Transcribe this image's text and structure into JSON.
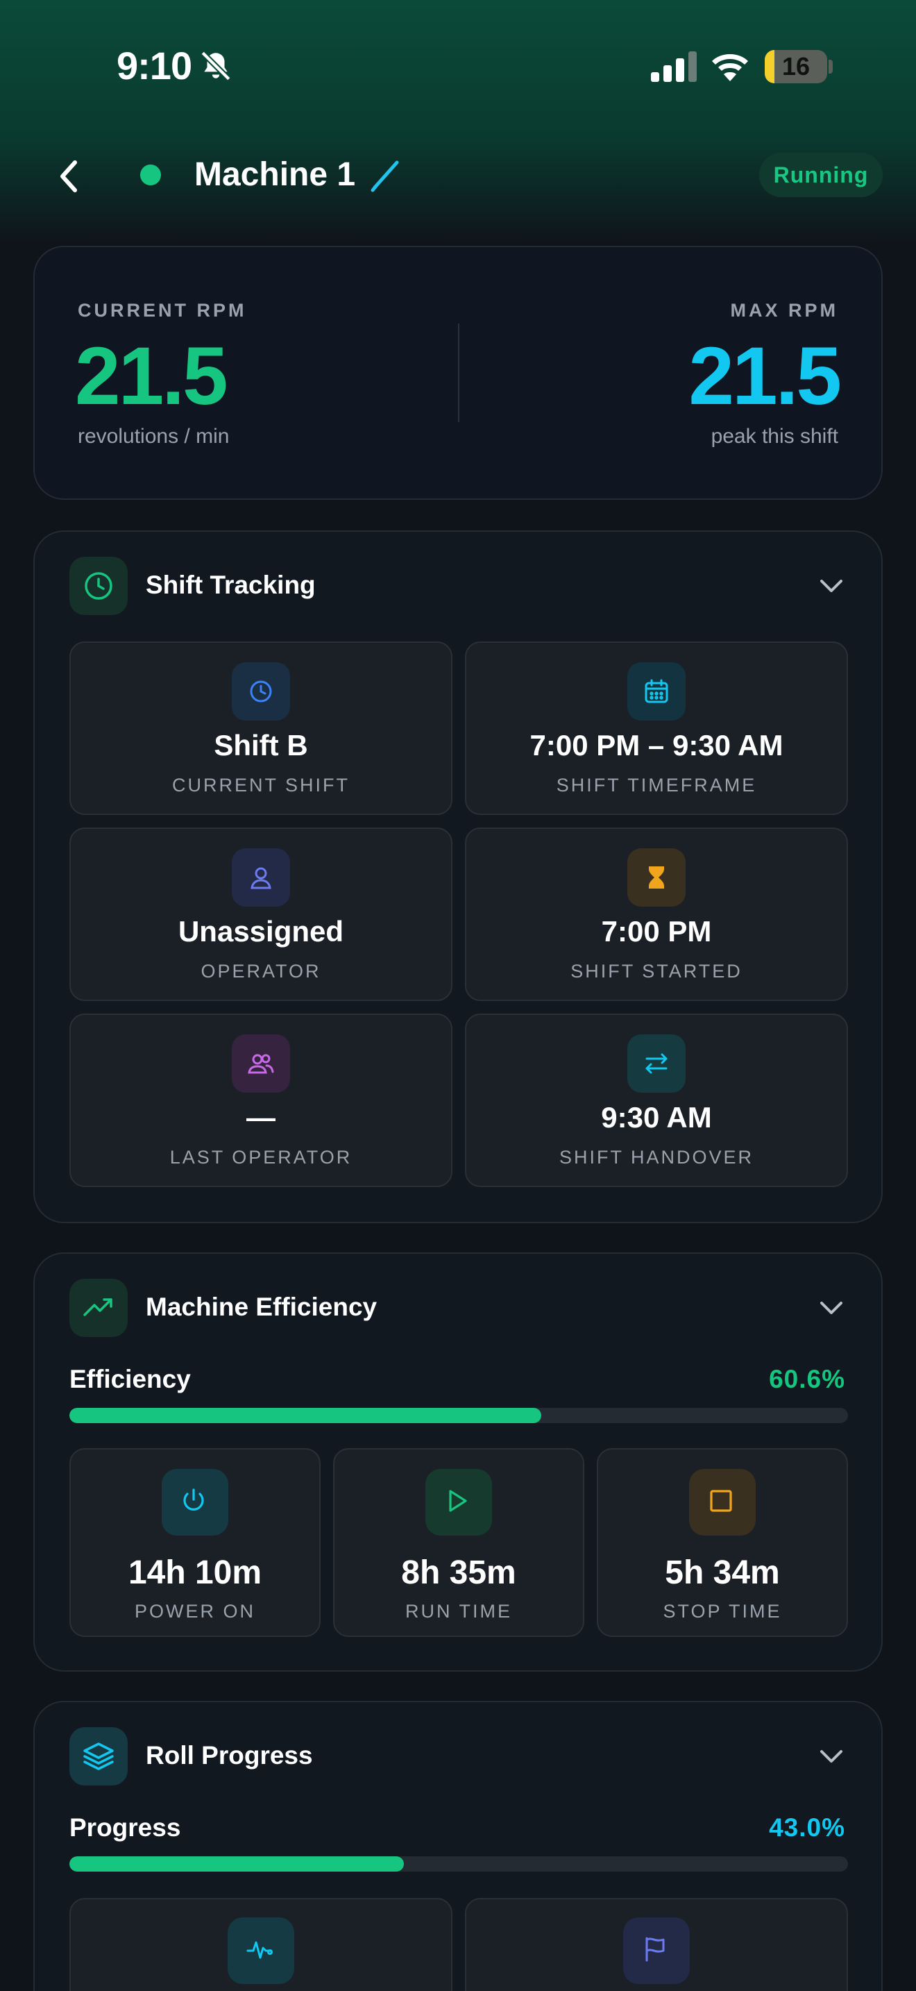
{
  "status_bar": {
    "time": "9:10",
    "battery": "16",
    "battery_level": 0.16
  },
  "header": {
    "title": "Machine 1",
    "status": "Running"
  },
  "rpm": {
    "current_label": "CURRENT RPM",
    "current_value": "21.5",
    "current_unit": "revolutions / min",
    "max_label": "MAX RPM",
    "max_value": "21.5",
    "max_unit": "peak this shift"
  },
  "shift_tracking": {
    "title": "Shift Tracking",
    "tiles": [
      {
        "value": "Shift B",
        "label": "CURRENT SHIFT",
        "icon": "clock-icon"
      },
      {
        "value": "7:00 PM – 9:30 AM",
        "label": "SHIFT TIMEFRAME",
        "icon": "calendar-icon"
      },
      {
        "value": "Unassigned",
        "label": "OPERATOR",
        "icon": "user-icon"
      },
      {
        "value": "7:00 PM",
        "label": "SHIFT STARTED",
        "icon": "hourglass-icon"
      },
      {
        "value": "—",
        "label": "LAST OPERATOR",
        "icon": "users-icon"
      },
      {
        "value": "9:30 AM",
        "label": "SHIFT HANDOVER",
        "icon": "swap-icon"
      }
    ]
  },
  "efficiency": {
    "title": "Machine Efficiency",
    "bar_label": "Efficiency",
    "bar_value": "60.6%",
    "bar_fraction": 0.606,
    "tiles": [
      {
        "value": "14h 10m",
        "label": "POWER ON",
        "icon": "power-icon"
      },
      {
        "value": "8h 35m",
        "label": "RUN TIME",
        "icon": "play-icon"
      },
      {
        "value": "5h 34m",
        "label": "STOP TIME",
        "icon": "stop-icon"
      }
    ]
  },
  "roll_progress": {
    "title": "Roll Progress",
    "bar_label": "Progress",
    "bar_value": "43.0%",
    "bar_fraction": 0.43,
    "tiles": [
      {
        "icon": "activity-icon"
      },
      {
        "icon": "flag-icon"
      }
    ]
  },
  "colors": {
    "accent_green": "#16c57f",
    "accent_cyan": "#12c8f0",
    "background": "#0f141b"
  }
}
